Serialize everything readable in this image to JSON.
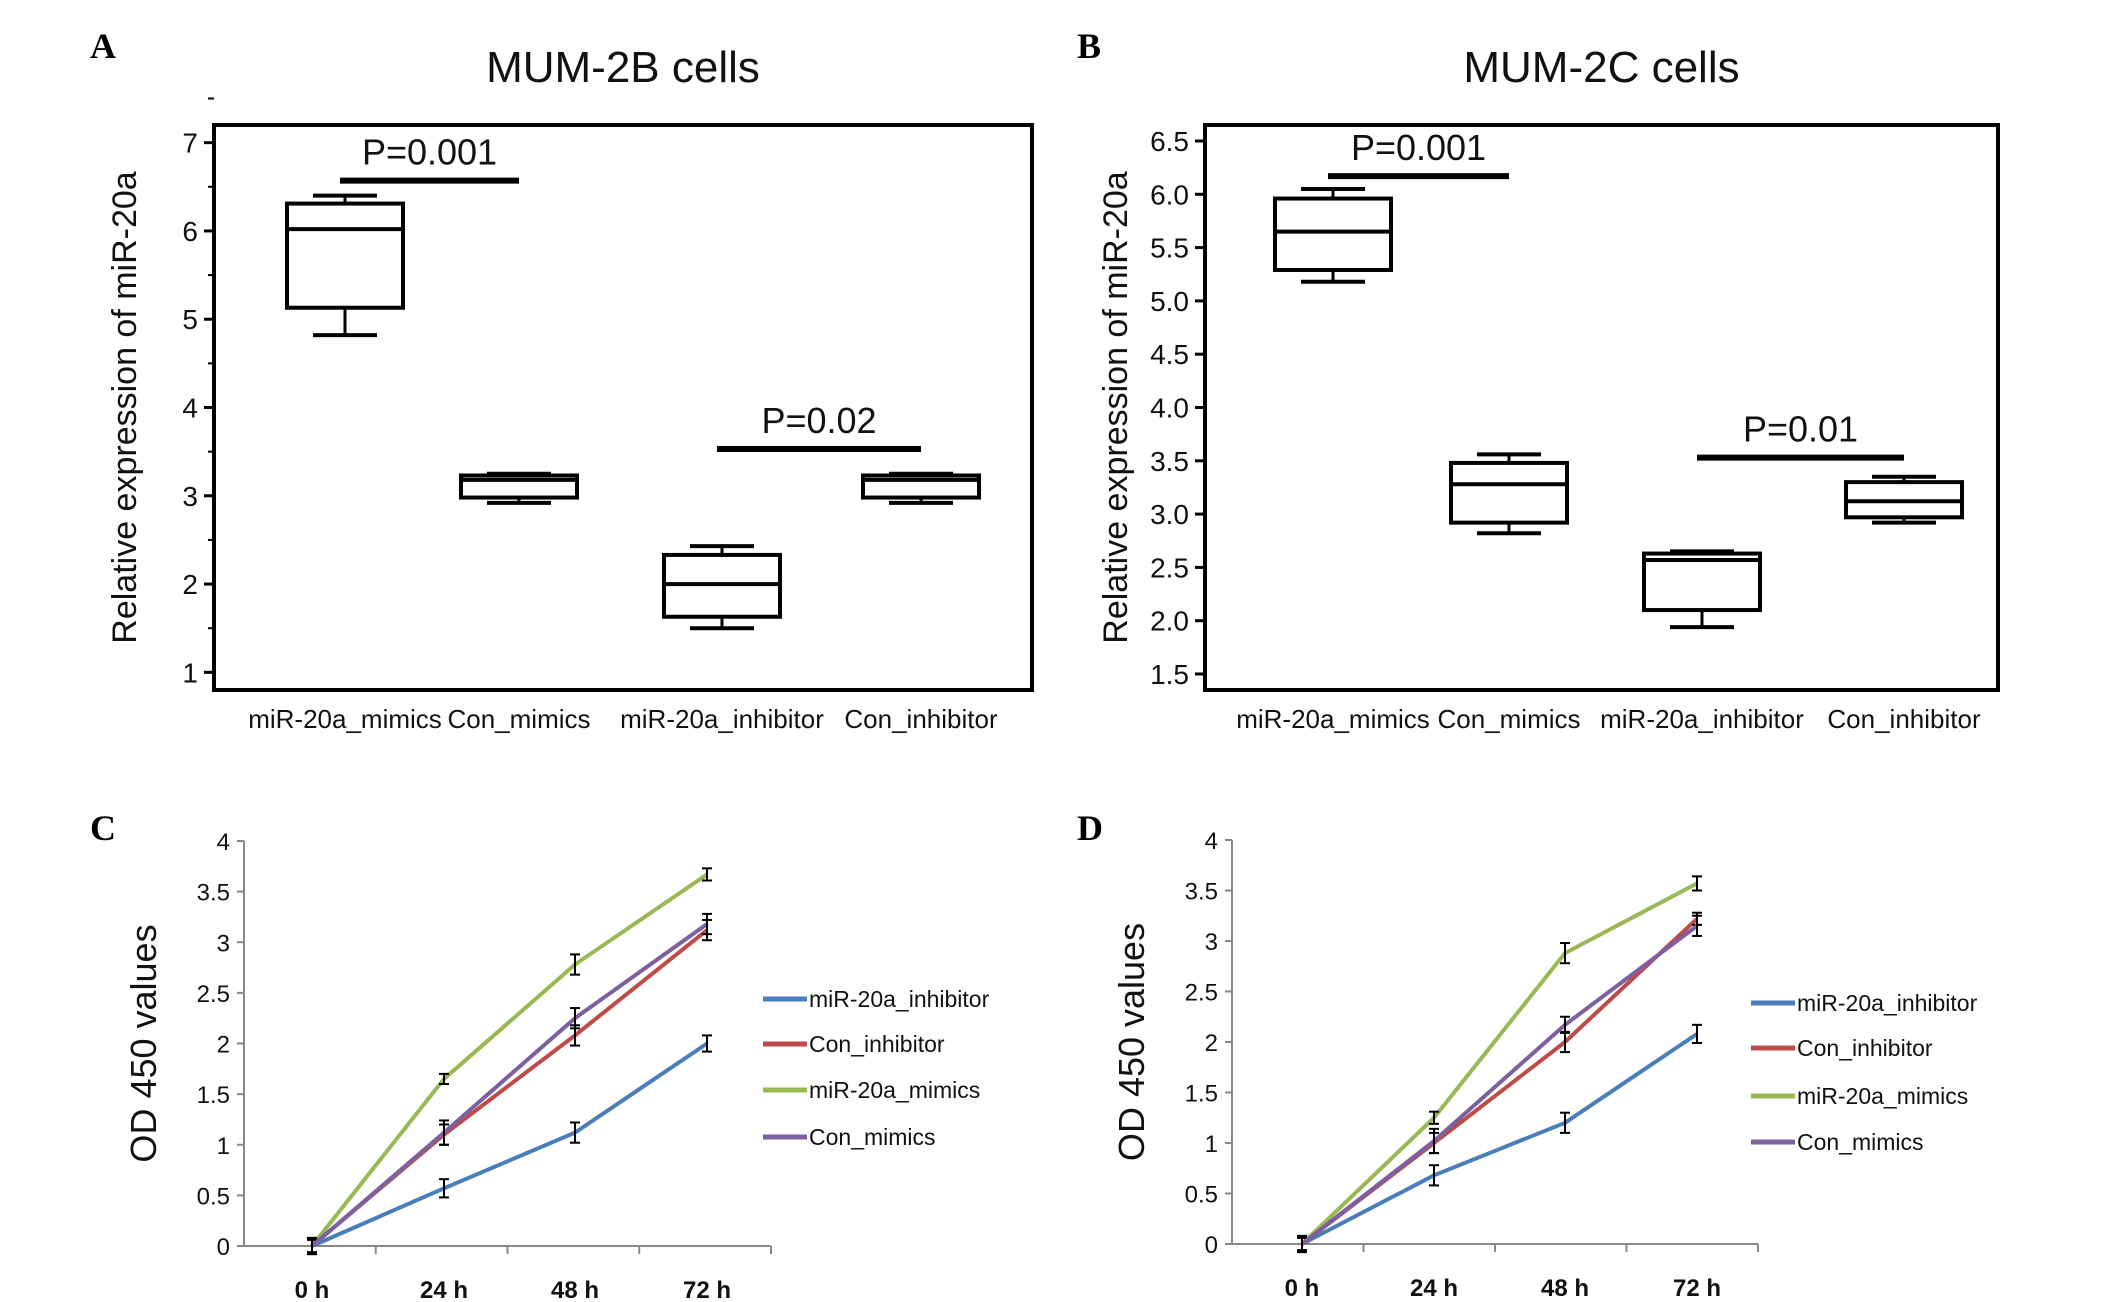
{
  "panels": {
    "A": {
      "letter": "A"
    },
    "B": {
      "letter": "B"
    },
    "C": {
      "letter": "C"
    },
    "D": {
      "letter": "D"
    }
  },
  "colors": {
    "miR-20a_inhibitor": "#4a7ebb",
    "Con_inhibitor": "#be4b48",
    "miR-20a_mimics": "#98b954",
    "Con_mimics": "#7d60a0"
  },
  "chart_data": [
    {
      "panel": "A",
      "type": "box",
      "title": "MUM-2B cells",
      "ylabel": "Relative expression of miR-20a",
      "xlabel": "",
      "ylim": [
        0.8,
        7.2
      ],
      "yticks": [
        "1",
        "2",
        "3",
        "4",
        "5",
        "6",
        "7"
      ],
      "ytick_values": [
        1,
        2,
        3,
        4,
        5,
        6,
        7
      ],
      "categories": [
        "miR-20a_mimics",
        "Con_mimics",
        "miR-20a_inhibitor",
        "Con_inhibitor"
      ],
      "boxes": [
        {
          "min": 4.82,
          "q1": 5.13,
          "median": 6.02,
          "q3": 6.31,
          "max": 6.4
        },
        {
          "min": 2.92,
          "q1": 2.98,
          "median": 3.18,
          "q3": 3.23,
          "max": 3.25
        },
        {
          "min": 1.5,
          "q1": 1.63,
          "median": 2.0,
          "q3": 2.33,
          "max": 2.43
        },
        {
          "min": 2.92,
          "q1": 2.98,
          "median": 3.18,
          "q3": 3.23,
          "max": 3.25
        }
      ],
      "annotations": [
        {
          "text": "P=0.001",
          "from": 0,
          "to": 1,
          "y": 6.57
        },
        {
          "text": "P=0.02",
          "from": 2,
          "to": 3,
          "y": 3.53
        }
      ]
    },
    {
      "panel": "B",
      "type": "box",
      "title": "MUM-2C cells",
      "ylabel": "Relative expression of miR-20a",
      "xlabel": "",
      "ylim": [
        1.35,
        6.65
      ],
      "yticks": [
        "1.5",
        "2.0",
        "2.5",
        "3.0",
        "3.5",
        "4.0",
        "4.5",
        "5.0",
        "5.5",
        "6.0",
        "6.5"
      ],
      "ytick_values": [
        1.5,
        2.0,
        2.5,
        3.0,
        3.5,
        4.0,
        4.5,
        5.0,
        5.5,
        6.0,
        6.5
      ],
      "categories": [
        "miR-20a_mimics",
        "Con_mimics",
        "miR-20a_inhibitor",
        "Con_inhibitor"
      ],
      "boxes": [
        {
          "min": 5.18,
          "q1": 5.29,
          "median": 5.65,
          "q3": 5.96,
          "max": 6.05
        },
        {
          "min": 2.82,
          "q1": 2.92,
          "median": 3.28,
          "q3": 3.48,
          "max": 3.56
        },
        {
          "min": 1.94,
          "q1": 2.1,
          "median": 2.57,
          "q3": 2.63,
          "max": 2.65
        },
        {
          "min": 2.92,
          "q1": 2.97,
          "median": 3.12,
          "q3": 3.3,
          "max": 3.35
        }
      ],
      "annotations": [
        {
          "text": "P=0.001",
          "from": 0,
          "to": 1,
          "y": 6.17
        },
        {
          "text": "P=0.01",
          "from": 2,
          "to": 3,
          "y": 3.53
        }
      ]
    },
    {
      "panel": "C",
      "type": "line",
      "title": "",
      "ylabel": "OD 450 values",
      "xlabel": "",
      "ylim": [
        0,
        4
      ],
      "yticks": [
        "0",
        "0.5",
        "1",
        "1.5",
        "2",
        "2.5",
        "3",
        "3.5",
        "4"
      ],
      "ytick_values": [
        0,
        0.5,
        1,
        1.5,
        2,
        2.5,
        3,
        3.5,
        4
      ],
      "categories": [
        "0 h",
        "24 h",
        "48 h",
        "72 h"
      ],
      "legend": "right",
      "series": [
        {
          "name": "miR-20a_inhibitor",
          "values": [
            0,
            0.57,
            1.12,
            2.0
          ],
          "errors": [
            0.08,
            0.09,
            0.1,
            0.08
          ]
        },
        {
          "name": "Con_inhibitor",
          "values": [
            0,
            1.1,
            2.08,
            3.12
          ],
          "errors": [
            0.07,
            0.1,
            0.1,
            0.1
          ]
        },
        {
          "name": "miR-20a_mimics",
          "values": [
            0,
            1.65,
            2.78,
            3.67
          ],
          "errors": [
            0.06,
            0.05,
            0.1,
            0.06
          ]
        },
        {
          "name": "Con_mimics",
          "values": [
            0,
            1.12,
            2.25,
            3.18
          ],
          "errors": [
            0.08,
            0.12,
            0.1,
            0.1
          ]
        }
      ]
    },
    {
      "panel": "D",
      "type": "line",
      "title": "",
      "ylabel": "OD 450 values",
      "xlabel": "",
      "ylim": [
        0,
        4
      ],
      "yticks": [
        "0",
        "0.5",
        "1",
        "1.5",
        "2",
        "2.5",
        "3",
        "3.5",
        "4"
      ],
      "ytick_values": [
        0,
        0.5,
        1,
        1.5,
        2,
        2.5,
        3,
        3.5,
        4
      ],
      "categories": [
        "0 h",
        "24 h",
        "48 h",
        "72 h"
      ],
      "legend": "right",
      "series": [
        {
          "name": "miR-20a_inhibitor",
          "values": [
            0,
            0.68,
            1.2,
            2.08
          ],
          "errors": [
            0.08,
            0.1,
            0.1,
            0.09
          ]
        },
        {
          "name": "Con_inhibitor",
          "values": [
            0,
            1.0,
            2.0,
            3.22
          ],
          "errors": [
            0.07,
            0.1,
            0.1,
            0.06
          ]
        },
        {
          "name": "miR-20a_mimics",
          "values": [
            0,
            1.25,
            2.88,
            3.57
          ],
          "errors": [
            0.06,
            0.06,
            0.1,
            0.07
          ]
        },
        {
          "name": "Con_mimics",
          "values": [
            0,
            1.02,
            2.17,
            3.15
          ],
          "errors": [
            0.08,
            0.12,
            0.08,
            0.1
          ]
        }
      ]
    }
  ]
}
